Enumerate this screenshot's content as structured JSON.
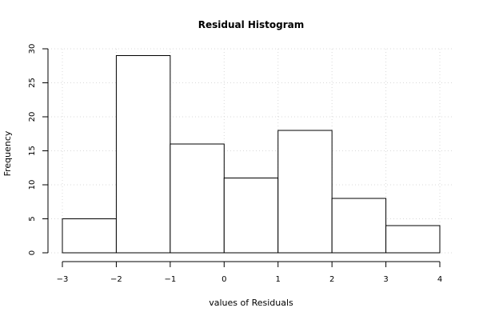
{
  "chart_data": {
    "type": "bar",
    "title": "Residual Histogram",
    "xlabel": "values of Residuals",
    "ylabel": "Frequency",
    "bins": [
      {
        "x0": -3,
        "x1": -2,
        "count": 5
      },
      {
        "x0": -2,
        "x1": -1,
        "count": 29
      },
      {
        "x0": -1,
        "x1": 0,
        "count": 16
      },
      {
        "x0": 0,
        "x1": 1,
        "count": 11
      },
      {
        "x0": 1,
        "x1": 2,
        "count": 18
      },
      {
        "x0": 2,
        "x1": 3,
        "count": 8
      },
      {
        "x0": 3,
        "x1": 4,
        "count": 4
      }
    ],
    "xlim": [
      -3,
      4
    ],
    "ylim": [
      0,
      30
    ],
    "x_ticks": [
      -3,
      -2,
      -1,
      0,
      1,
      2,
      3,
      4
    ],
    "y_ticks": [
      0,
      5,
      10,
      15,
      20,
      25,
      30
    ],
    "x_tick_labels": [
      "−3",
      "−2",
      "−1",
      "0",
      "1",
      "2",
      "3",
      "4"
    ],
    "y_tick_labels": [
      "0",
      "5",
      "10",
      "15",
      "20",
      "25",
      "30"
    ],
    "grid": true,
    "colors": {
      "bar_fill": "#ffffff",
      "bar_stroke": "#000000",
      "grid": "#d9d9d9"
    }
  }
}
